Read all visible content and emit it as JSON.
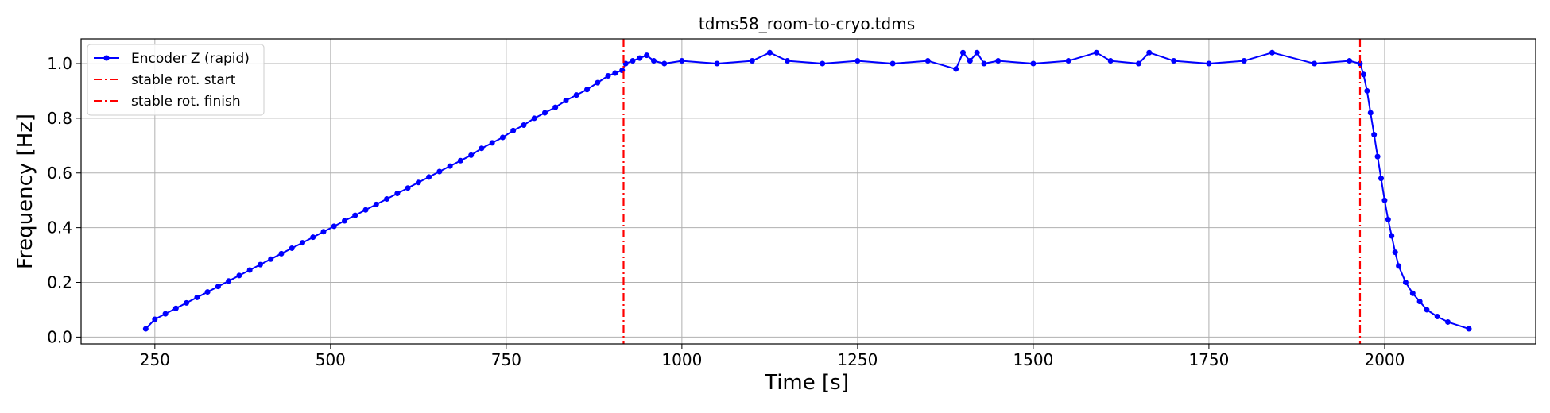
{
  "chart_data": {
    "type": "line",
    "title": "tdms58_room-to-cryo.tdms",
    "xlabel": "Time [s]",
    "ylabel": "Frequency [Hz]",
    "xlim": [
      145,
      2215
    ],
    "ylim": [
      -0.025,
      1.09
    ],
    "xticks": [
      250,
      500,
      750,
      1000,
      1250,
      1500,
      1750,
      2000
    ],
    "xtick_labels": [
      "250",
      "500",
      "750",
      "1000",
      "1250",
      "1500",
      "1750",
      "2000"
    ],
    "yticks": [
      0.0,
      0.2,
      0.4,
      0.6,
      0.8,
      1.0
    ],
    "ytick_labels": [
      "0.0",
      "0.2",
      "0.4",
      "0.6",
      "0.8",
      "1.0"
    ],
    "grid": true,
    "legend_position": "top-left",
    "series": [
      {
        "name": "Encoder Z (rapid)",
        "color": "#0000ff",
        "marker": "circle",
        "x": [
          237,
          250,
          265,
          280,
          295,
          310,
          325,
          340,
          355,
          370,
          385,
          400,
          415,
          430,
          445,
          460,
          475,
          490,
          505,
          520,
          535,
          550,
          565,
          580,
          595,
          610,
          625,
          640,
          655,
          670,
          685,
          700,
          715,
          730,
          745,
          760,
          775,
          790,
          805,
          820,
          835,
          850,
          865,
          880,
          895,
          905,
          915,
          920,
          930,
          940,
          950,
          960,
          975,
          1000,
          1050,
          1100,
          1125,
          1150,
          1200,
          1250,
          1300,
          1350,
          1390,
          1400,
          1410,
          1420,
          1430,
          1450,
          1500,
          1550,
          1590,
          1610,
          1650,
          1665,
          1700,
          1750,
          1800,
          1840,
          1900,
          1950,
          1965,
          1970,
          1975,
          1980,
          1985,
          1990,
          1995,
          2000,
          2005,
          2010,
          2015,
          2020,
          2030,
          2040,
          2050,
          2060,
          2075,
          2090,
          2120
        ],
        "y": [
          0.03,
          0.065,
          0.085,
          0.105,
          0.125,
          0.145,
          0.165,
          0.185,
          0.205,
          0.225,
          0.245,
          0.265,
          0.285,
          0.305,
          0.325,
          0.345,
          0.365,
          0.385,
          0.405,
          0.425,
          0.445,
          0.465,
          0.485,
          0.505,
          0.525,
          0.545,
          0.565,
          0.585,
          0.605,
          0.625,
          0.645,
          0.665,
          0.69,
          0.71,
          0.73,
          0.755,
          0.775,
          0.8,
          0.82,
          0.84,
          0.865,
          0.885,
          0.905,
          0.93,
          0.955,
          0.965,
          0.975,
          1.0,
          1.01,
          1.02,
          1.03,
          1.01,
          1.0,
          1.01,
          1.0,
          1.01,
          1.04,
          1.01,
          1.0,
          1.01,
          1.0,
          1.01,
          0.98,
          1.04,
          1.01,
          1.04,
          1.0,
          1.01,
          1.0,
          1.01,
          1.04,
          1.01,
          1.0,
          1.04,
          1.01,
          1.0,
          1.01,
          1.04,
          1.0,
          1.01,
          1.0,
          0.96,
          0.9,
          0.82,
          0.74,
          0.66,
          0.58,
          0.5,
          0.43,
          0.37,
          0.31,
          0.26,
          0.2,
          0.16,
          0.13,
          0.1,
          0.075,
          0.055,
          0.03
        ]
      },
      {
        "name": "stable rot. start",
        "color": "#ff0000",
        "style": "dash-dot",
        "x": [
          917
        ]
      },
      {
        "name": "stable rot. finish",
        "color": "#ff0000",
        "style": "dash-dot",
        "x": [
          1965
        ]
      }
    ]
  }
}
